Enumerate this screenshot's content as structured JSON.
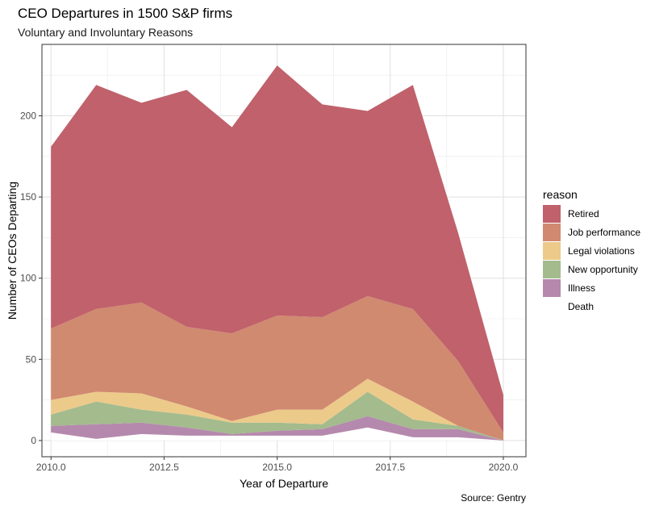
{
  "chart_data": {
    "type": "area",
    "stacked": true,
    "title": "CEO Departures in 1500 S&P firms",
    "subtitle": "Voluntary and Involuntary Reasons",
    "caption": "Source: Gentry",
    "xlabel": "Year of Departure",
    "ylabel": "Number of CEOs Departing",
    "xlim": [
      2009.8,
      2020.5
    ],
    "ylim": [
      -10,
      244
    ],
    "x_ticks": [
      "2010.0",
      "2012.5",
      "2015.0",
      "2017.5",
      "2020.0"
    ],
    "y_ticks": [
      "0",
      "50",
      "100",
      "150",
      "200"
    ],
    "x_tick_values": [
      2010,
      2012.5,
      2015,
      2017.5,
      2020
    ],
    "y_tick_values": [
      0,
      50,
      100,
      150,
      200
    ],
    "grid": true,
    "legend": {
      "title": "reason",
      "position": "right"
    },
    "x": [
      2010,
      2011,
      2012,
      2013,
      2014,
      2015,
      2016,
      2017,
      2018,
      2019,
      2020
    ],
    "series": [
      {
        "name": "Death",
        "color": "#ffffff",
        "values": [
          5,
          1,
          4,
          3,
          3,
          3,
          3,
          8,
          2,
          2,
          0
        ]
      },
      {
        "name": "Illness",
        "color": "#b589ad",
        "values": [
          4,
          9,
          7,
          5,
          1,
          3,
          4,
          7,
          5,
          5,
          0
        ]
      },
      {
        "name": "New opportunity",
        "color": "#a3bb8d",
        "values": [
          7,
          14,
          8,
          8,
          7,
          5,
          3,
          15,
          6,
          2,
          0
        ]
      },
      {
        "name": "Legal violations",
        "color": "#ecca8a",
        "values": [
          9,
          6,
          10,
          5,
          1,
          8,
          9,
          8,
          11,
          0,
          0
        ]
      },
      {
        "name": "Job performance",
        "color": "#d08a70",
        "values": [
          44,
          51,
          56,
          49,
          54,
          58,
          57,
          51,
          57,
          40,
          5
        ]
      },
      {
        "name": "Retired",
        "color": "#c0616b",
        "values": [
          112,
          138,
          123,
          146,
          127,
          154,
          131,
          114,
          138,
          79,
          23
        ]
      }
    ]
  }
}
